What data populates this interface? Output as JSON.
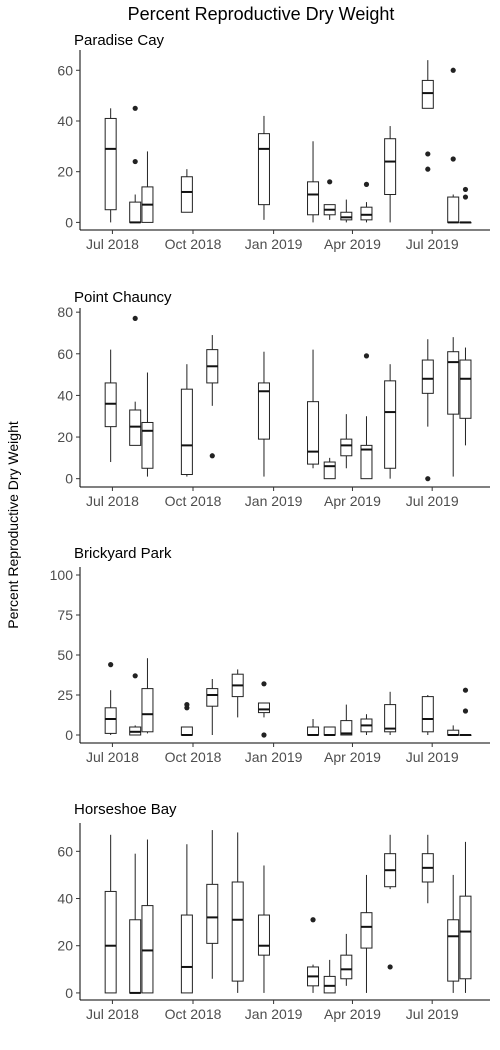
{
  "title": "Percent Reproductive Dry Weight",
  "ylabel": "Percent Reproductive Dry Weight",
  "chart_data": {
    "type": "boxplot",
    "title": "Percent Reproductive Dry Weight",
    "xlabel": "",
    "ylabel": "Percent Reproductive Dry Weight",
    "x_type": "date",
    "xlim": [
      "2018-05-25",
      "2019-09-05"
    ],
    "x_ticks": [
      {
        "date": "2018-07-01",
        "label": "Jul 2018"
      },
      {
        "date": "2018-10-01",
        "label": "Oct 2018"
      },
      {
        "date": "2019-01-01",
        "label": "Jan 2019"
      },
      {
        "date": "2019-04-01",
        "label": "Apr 2019"
      },
      {
        "date": "2019-07-01",
        "label": "Jul 2019"
      }
    ],
    "grid": false,
    "panels": [
      {
        "name": "Paradise Cay",
        "ylim": [
          -3,
          68
        ],
        "y_ticks": [
          0,
          20,
          40,
          60
        ],
        "boxes": [
          {
            "date": "2018-06-29",
            "min": 0,
            "q1": 5,
            "median": 29,
            "q3": 41,
            "max": 45,
            "outliers": []
          },
          {
            "date": "2018-07-27",
            "min": 0,
            "q1": 0,
            "median": 0,
            "q3": 8,
            "max": 11,
            "outliers": [
              24,
              45
            ]
          },
          {
            "date": "2018-08-10",
            "min": 0,
            "q1": 0,
            "median": 7,
            "q3": 14,
            "max": 28,
            "outliers": []
          },
          {
            "date": "2018-09-24",
            "min": 4,
            "q1": 4,
            "median": 12,
            "q3": 18,
            "max": 21,
            "outliers": []
          },
          {
            "date": "2018-12-21",
            "min": 1,
            "q1": 7,
            "median": 29,
            "q3": 35,
            "max": 42,
            "outliers": []
          },
          {
            "date": "2019-02-15",
            "min": 0,
            "q1": 3,
            "median": 11,
            "q3": 16,
            "max": 32,
            "outliers": []
          },
          {
            "date": "2019-03-06",
            "min": 1,
            "q1": 3,
            "median": 5,
            "q3": 7,
            "max": 7,
            "outliers": [
              16
            ]
          },
          {
            "date": "2019-03-25",
            "min": 0,
            "q1": 1,
            "median": 2,
            "q3": 4,
            "max": 9,
            "outliers": []
          },
          {
            "date": "2019-04-17",
            "min": 0,
            "q1": 1,
            "median": 3,
            "q3": 6,
            "max": 8,
            "outliers": [
              15
            ]
          },
          {
            "date": "2019-05-14",
            "min": 0,
            "q1": 11,
            "median": 24,
            "q3": 33,
            "max": 38,
            "outliers": []
          },
          {
            "date": "2019-06-26",
            "min": 45,
            "q1": 45,
            "median": 51,
            "q3": 56,
            "max": 64,
            "outliers": [
              21,
              27
            ]
          },
          {
            "date": "2019-07-25",
            "min": 0,
            "q1": 0,
            "median": 0,
            "q3": 10,
            "max": 11,
            "outliers": [
              25,
              60
            ]
          },
          {
            "date": "2019-08-08",
            "min": 0,
            "q1": 0,
            "median": 0,
            "q3": 0,
            "max": 0,
            "outliers": [
              10,
              13
            ]
          }
        ]
      },
      {
        "name": "Point Chauncy",
        "ylim": [
          -4,
          82
        ],
        "y_ticks": [
          0,
          20,
          40,
          60,
          80
        ],
        "boxes": [
          {
            "date": "2018-06-29",
            "min": 8,
            "q1": 25,
            "median": 36,
            "q3": 46,
            "max": 62,
            "outliers": []
          },
          {
            "date": "2018-07-27",
            "min": 16,
            "q1": 16,
            "median": 25,
            "q3": 33,
            "max": 37,
            "outliers": [
              77
            ]
          },
          {
            "date": "2018-08-10",
            "min": 1,
            "q1": 5,
            "median": 23,
            "q3": 27,
            "max": 51,
            "outliers": []
          },
          {
            "date": "2018-09-24",
            "min": 1,
            "q1": 2,
            "median": 16,
            "q3": 43,
            "max": 55,
            "outliers": []
          },
          {
            "date": "2018-10-23",
            "min": 35,
            "q1": 46,
            "median": 54,
            "q3": 62,
            "max": 69,
            "outliers": [
              11
            ]
          },
          {
            "date": "2018-12-21",
            "min": 1,
            "q1": 19,
            "median": 42,
            "q3": 46,
            "max": 61,
            "outliers": []
          },
          {
            "date": "2019-02-15",
            "min": 5,
            "q1": 7,
            "median": 13,
            "q3": 37,
            "max": 62,
            "outliers": []
          },
          {
            "date": "2019-03-06",
            "min": 0,
            "q1": 0,
            "median": 6,
            "q3": 8,
            "max": 10,
            "outliers": []
          },
          {
            "date": "2019-03-25",
            "min": 5,
            "q1": 11,
            "median": 16,
            "q3": 19,
            "max": 31,
            "outliers": []
          },
          {
            "date": "2019-04-17",
            "min": 0,
            "q1": 0,
            "median": 14,
            "q3": 16,
            "max": 30,
            "outliers": [
              59
            ]
          },
          {
            "date": "2019-05-14",
            "min": 0,
            "q1": 5,
            "median": 32,
            "q3": 47,
            "max": 55,
            "outliers": []
          },
          {
            "date": "2019-06-26",
            "min": 25,
            "q1": 41,
            "median": 48,
            "q3": 57,
            "max": 67,
            "outliers": [
              0
            ]
          },
          {
            "date": "2019-07-25",
            "min": 1,
            "q1": 31,
            "median": 56,
            "q3": 61,
            "max": 68,
            "outliers": []
          },
          {
            "date": "2019-08-08",
            "min": 16,
            "q1": 29,
            "median": 48,
            "q3": 57,
            "max": 63,
            "outliers": []
          }
        ]
      },
      {
        "name": "Brickyard Park",
        "ylim": [
          -5,
          105
        ],
        "y_ticks": [
          0,
          25,
          50,
          75,
          100
        ],
        "boxes": [
          {
            "date": "2018-06-29",
            "min": 0,
            "q1": 1,
            "median": 10,
            "q3": 17,
            "max": 28,
            "outliers": [
              44
            ]
          },
          {
            "date": "2018-07-27",
            "min": 0,
            "q1": 0,
            "median": 2,
            "q3": 5,
            "max": 6,
            "outliers": [
              37
            ]
          },
          {
            "date": "2018-08-10",
            "min": 1,
            "q1": 2,
            "median": 13,
            "q3": 29,
            "max": 48,
            "outliers": []
          },
          {
            "date": "2018-09-24",
            "min": 0,
            "q1": 0,
            "median": 0,
            "q3": 5,
            "max": 5,
            "outliers": [
              17,
              19
            ]
          },
          {
            "date": "2018-10-23",
            "min": 0,
            "q1": 18,
            "median": 25,
            "q3": 29,
            "max": 35,
            "outliers": []
          },
          {
            "date": "2018-11-21",
            "min": 11,
            "q1": 24,
            "median": 31,
            "q3": 38,
            "max": 41,
            "outliers": []
          },
          {
            "date": "2018-12-21",
            "min": 11,
            "q1": 14,
            "median": 16,
            "q3": 20,
            "max": 20,
            "outliers": [
              0,
              32
            ]
          },
          {
            "date": "2019-02-15",
            "min": 0,
            "q1": 0,
            "median": 0,
            "q3": 5,
            "max": 10,
            "outliers": []
          },
          {
            "date": "2019-03-06",
            "min": 0,
            "q1": 0,
            "median": 0,
            "q3": 5,
            "max": 5,
            "outliers": []
          },
          {
            "date": "2019-03-25",
            "min": 0,
            "q1": 0,
            "median": 1,
            "q3": 9,
            "max": 19,
            "outliers": []
          },
          {
            "date": "2019-04-17",
            "min": 0,
            "q1": 2,
            "median": 6,
            "q3": 10,
            "max": 13,
            "outliers": []
          },
          {
            "date": "2019-05-14",
            "min": 0,
            "q1": 2,
            "median": 4,
            "q3": 19,
            "max": 27,
            "outliers": []
          },
          {
            "date": "2019-06-26",
            "min": 0,
            "q1": 2,
            "median": 10,
            "q3": 24,
            "max": 25,
            "outliers": []
          },
          {
            "date": "2019-07-25",
            "min": 0,
            "q1": 0,
            "median": 0,
            "q3": 3,
            "max": 6,
            "outliers": []
          },
          {
            "date": "2019-08-08",
            "min": 0,
            "q1": 0,
            "median": 0,
            "q3": 0,
            "max": 0,
            "outliers": [
              15,
              28
            ]
          }
        ]
      },
      {
        "name": "Horseshoe Bay",
        "ylim": [
          -3,
          72
        ],
        "y_ticks": [
          0,
          20,
          40,
          60
        ],
        "boxes": [
          {
            "date": "2018-06-29",
            "min": 0,
            "q1": 0,
            "median": 20,
            "q3": 43,
            "max": 67,
            "outliers": []
          },
          {
            "date": "2018-07-27",
            "min": 0,
            "q1": 0,
            "median": 0,
            "q3": 31,
            "max": 59,
            "outliers": []
          },
          {
            "date": "2018-08-10",
            "min": 0,
            "q1": 0,
            "median": 18,
            "q3": 37,
            "max": 65,
            "outliers": []
          },
          {
            "date": "2018-09-24",
            "min": 0,
            "q1": 0,
            "median": 11,
            "q3": 33,
            "max": 63,
            "outliers": []
          },
          {
            "date": "2018-10-23",
            "min": 6,
            "q1": 21,
            "median": 32,
            "q3": 46,
            "max": 69,
            "outliers": []
          },
          {
            "date": "2018-11-21",
            "min": 0,
            "q1": 5,
            "median": 31,
            "q3": 47,
            "max": 68,
            "outliers": []
          },
          {
            "date": "2018-12-21",
            "min": 0,
            "q1": 16,
            "median": 20,
            "q3": 33,
            "max": 54,
            "outliers": []
          },
          {
            "date": "2019-02-15",
            "min": 0,
            "q1": 3,
            "median": 7,
            "q3": 11,
            "max": 12,
            "outliers": [
              31
            ]
          },
          {
            "date": "2019-03-06",
            "min": 0,
            "q1": 0,
            "median": 3,
            "q3": 7,
            "max": 14,
            "outliers": []
          },
          {
            "date": "2019-03-25",
            "min": 3,
            "q1": 6,
            "median": 10,
            "q3": 16,
            "max": 25,
            "outliers": []
          },
          {
            "date": "2019-04-17",
            "min": 0,
            "q1": 19,
            "median": 28,
            "q3": 34,
            "max": 50,
            "outliers": []
          },
          {
            "date": "2019-05-14",
            "min": 44,
            "q1": 45,
            "median": 52,
            "q3": 59,
            "max": 67,
            "outliers": [
              11
            ]
          },
          {
            "date": "2019-06-26",
            "min": 38,
            "q1": 47,
            "median": 53,
            "q3": 59,
            "max": 67,
            "outliers": []
          },
          {
            "date": "2019-07-25",
            "min": 0,
            "q1": 5,
            "median": 24,
            "q3": 31,
            "max": 50,
            "outliers": []
          },
          {
            "date": "2019-08-08",
            "min": 0,
            "q1": 6,
            "median": 26,
            "q3": 41,
            "max": 64,
            "outliers": []
          }
        ]
      }
    ]
  }
}
